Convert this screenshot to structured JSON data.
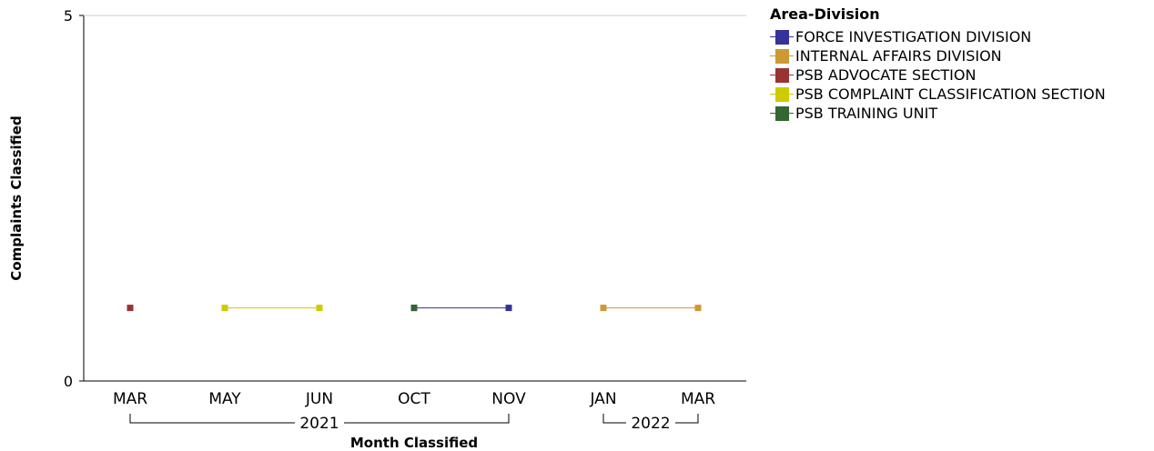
{
  "chart_data": {
    "type": "line",
    "xlabel": "Month Classified",
    "ylabel": "Complaints Classified",
    "ylim": [
      0,
      5
    ],
    "y_ticks": [
      "0",
      "5"
    ],
    "categories": [
      "MAR",
      "MAY",
      "JUN",
      "OCT",
      "NOV",
      "JAN",
      "MAR"
    ],
    "year_groups": [
      {
        "label": "2021",
        "start": 0,
        "end": 4
      },
      {
        "label": "2022",
        "start": 5,
        "end": 6
      }
    ],
    "legend_title": "Area-Division",
    "legend_position": "top-right",
    "grid": false,
    "series": [
      {
        "name": "FORCE INVESTIGATION DIVISION",
        "color": "#333399",
        "values": [
          null,
          null,
          null,
          1,
          1,
          null,
          null
        ]
      },
      {
        "name": "INTERNAL AFFAIRS DIVISION",
        "color": "#CC9933",
        "values": [
          null,
          null,
          null,
          null,
          null,
          1,
          1
        ]
      },
      {
        "name": "PSB ADVOCATE SECTION",
        "color": "#993333",
        "values": [
          1,
          null,
          null,
          null,
          null,
          null,
          null
        ]
      },
      {
        "name": "PSB COMPLAINT CLASSIFICATION SECTION",
        "color": "#CCCC00",
        "values": [
          null,
          1,
          1,
          null,
          null,
          null,
          null
        ]
      },
      {
        "name": "PSB TRAINING UNIT",
        "color": "#336633",
        "values": [
          null,
          null,
          null,
          1,
          null,
          null,
          null
        ]
      }
    ]
  }
}
